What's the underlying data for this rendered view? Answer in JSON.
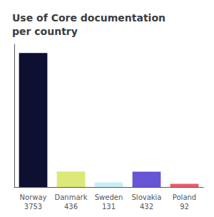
{
  "chart_data": {
    "type": "bar",
    "title": "Use of Core documentation\nper country",
    "categories": [
      "Norway\n3753",
      "Danmark\n436",
      "Sweden\n131",
      "Slovakia\n432",
      "Poland\n92"
    ],
    "values": [
      3753,
      436,
      131,
      432,
      92
    ],
    "colors": [
      "#0d1030",
      "#dde87a",
      "#c8eef5",
      "#6655d4",
      "#e85a6a"
    ],
    "ylim": [
      0,
      4000
    ],
    "grid": false,
    "tick_labels": "x"
  }
}
